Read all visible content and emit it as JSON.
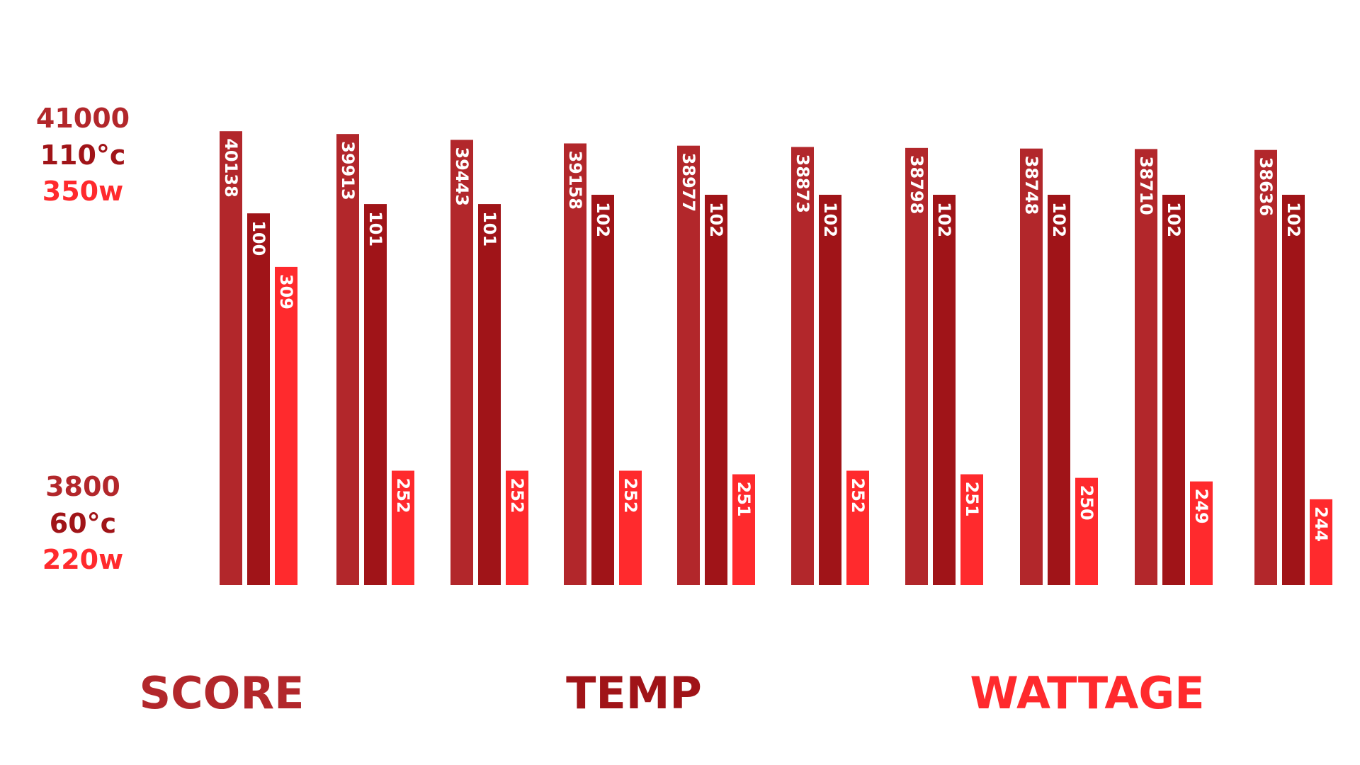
{
  "chart_data": {
    "type": "bar",
    "groups": 10,
    "series": [
      {
        "name": "SCORE",
        "color": "#b2272b",
        "min": 3800,
        "max": 41000,
        "values": [
          40138,
          39913,
          39443,
          39158,
          38977,
          38873,
          38798,
          38748,
          38710,
          38636
        ]
      },
      {
        "name": "TEMP",
        "color": "#a01418",
        "min": 60,
        "max": 110,
        "values": [
          100,
          101,
          101,
          102,
          102,
          102,
          102,
          102,
          102,
          102
        ]
      },
      {
        "name": "WATTAGE",
        "color": "#ff2a2d",
        "min": 220,
        "max": 350,
        "values": [
          309,
          252,
          252,
          252,
          251,
          252,
          251,
          250,
          249,
          244
        ]
      }
    ],
    "axis_top": [
      "41000",
      "110°c",
      "350w"
    ],
    "axis_bottom": [
      "3800",
      "60°c",
      "220w"
    ],
    "legend": [
      "SCORE",
      "TEMP",
      "WATTAGE"
    ]
  }
}
